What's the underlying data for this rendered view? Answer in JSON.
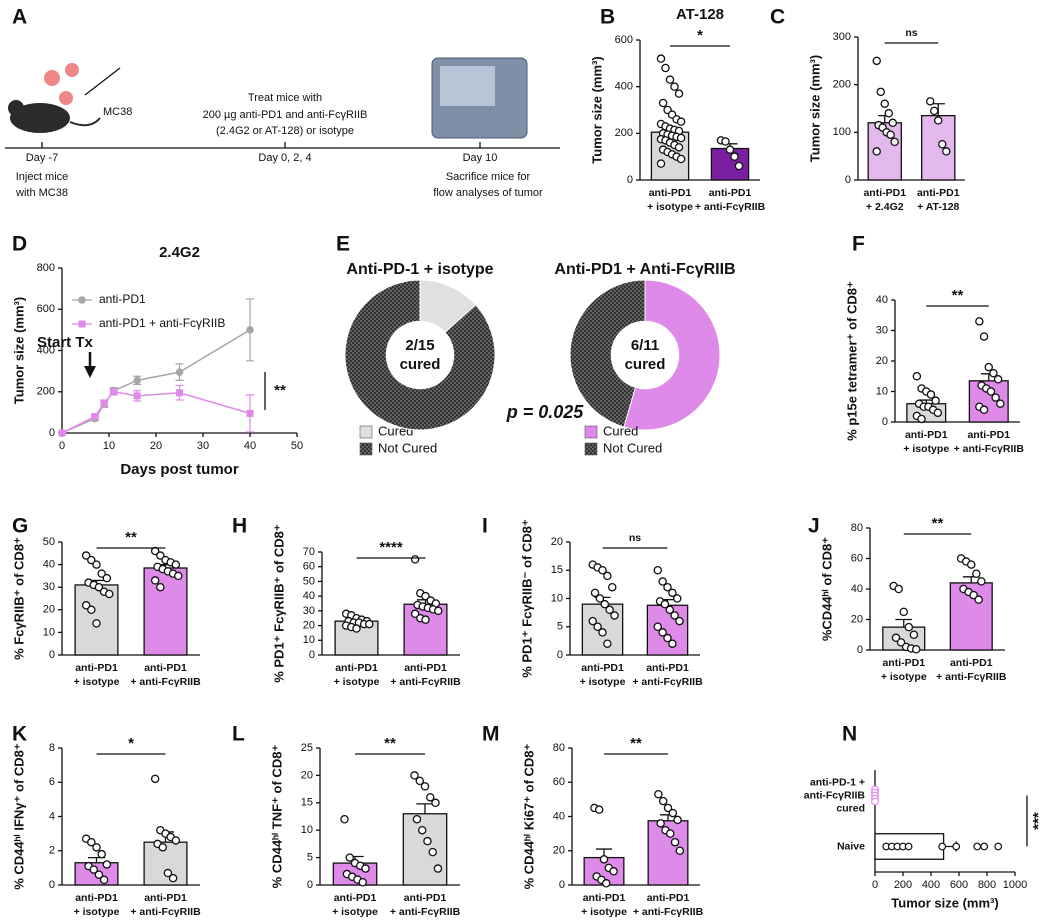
{
  "schematic": {
    "panel": "A",
    "cell_line": "MC38",
    "timeline": [
      {
        "day": "Day -7",
        "note": [
          "Inject mice",
          "with MC38"
        ]
      },
      {
        "day": "Day 0, 2, 4",
        "note": [
          "Treat mice with",
          "200 µg anti-PD1 and anti-FcγRIIB",
          "(2.4G2 or AT-128) or isotype"
        ]
      },
      {
        "day": "Day 10",
        "note": [
          "Sacrifice mice for",
          "flow analyses of tumor"
        ]
      }
    ]
  },
  "chart_data": [
    {
      "type": "bar",
      "panel": "B",
      "title": "AT-128",
      "ylabel": "Tumor size (mm³)",
      "categories": [
        [
          "anti-PD1",
          "+ isotype"
        ],
        [
          "anti-PD1",
          "+ anti-FcγRIIB"
        ]
      ],
      "values": [
        205,
        135
      ],
      "errors": [
        15,
        20
      ],
      "colors": [
        "#d9d9d9",
        "#7b1fa2"
      ],
      "points": [
        [
          520,
          480,
          430,
          400,
          370,
          330,
          300,
          280,
          260,
          250,
          240,
          230,
          220,
          215,
          210,
          200,
          195,
          190,
          185,
          180,
          175,
          170,
          160,
          150,
          140,
          130,
          120,
          110,
          100,
          90,
          70
        ],
        [
          170,
          165,
          130,
          100,
          60
        ]
      ],
      "ylim": [
        0,
        600
      ],
      "yticks": [
        0,
        200,
        400,
        600
      ],
      "significance": "*"
    },
    {
      "type": "bar",
      "panel": "C",
      "ylabel": "Tumor size (mm³)",
      "categories": [
        [
          "anti-PD1",
          "+ 2.4G2"
        ],
        [
          "anti-PD1",
          "+ AT-128"
        ]
      ],
      "values": [
        120,
        135
      ],
      "errors": [
        15,
        25
      ],
      "colors": [
        "#e3b8ec",
        "#e3b8ec"
      ],
      "points": [
        [
          250,
          185,
          160,
          140,
          120,
          115,
          110,
          100,
          95,
          80,
          60
        ],
        [
          165,
          145,
          125,
          75,
          60
        ]
      ],
      "ylim": [
        0,
        300
      ],
      "yticks": [
        0,
        100,
        200,
        300
      ],
      "significance": "ns"
    },
    {
      "type": "line",
      "panel": "D",
      "title": "2.4G2",
      "xlabel": "Days post tumor",
      "ylabel": "Tumor size (mm³)",
      "x": [
        0,
        7,
        9,
        11,
        16,
        25,
        40
      ],
      "series": [
        {
          "name": "anti-PD1",
          "color": "#a6a6a6",
          "marker": "circle",
          "values": [
            0,
            70,
            140,
            205,
            255,
            295,
            500
          ],
          "errors": [
            0,
            10,
            15,
            15,
            20,
            40,
            150
          ]
        },
        {
          "name": "anti-PD1 + anti-FcγRIIB",
          "color": "#dd8ae8",
          "marker": "square",
          "values": [
            0,
            80,
            145,
            200,
            180,
            195,
            95
          ],
          "errors": [
            0,
            10,
            15,
            15,
            25,
            35,
            90
          ]
        }
      ],
      "xlim": [
        0,
        50
      ],
      "xticks": [
        0,
        10,
        20,
        30,
        40,
        50
      ],
      "ylim": [
        0,
        800
      ],
      "yticks": [
        0,
        200,
        400,
        600,
        800
      ],
      "annotation": "Start Tx",
      "significance": "**"
    },
    {
      "type": "pie",
      "panel": "E",
      "title": "Anti-PD-1 + isotype",
      "categories": [
        "Cured",
        "Not Cured"
      ],
      "values": [
        2,
        13
      ],
      "colors": [
        "#e0e0e0",
        "#333333"
      ],
      "hatch": [
        false,
        true
      ],
      "center_label": [
        "2/15",
        "cured"
      ]
    },
    {
      "type": "pie",
      "title": "Anti-PD1  + Anti-FcγRIIB",
      "categories": [
        "Cured",
        "Not Cured"
      ],
      "values": [
        6,
        5
      ],
      "colors": [
        "#dd8ae8",
        "#333333"
      ],
      "hatch": [
        false,
        true
      ],
      "center_label": [
        "6/11",
        "cured"
      ],
      "annotation": "p = 0.025"
    },
    {
      "type": "bar",
      "panel": "F",
      "ylabel": "% p15e tetramer⁺ of CD8⁺",
      "categories": [
        [
          "anti-PD1",
          "+ isotype"
        ],
        [
          "anti-PD1",
          "+ anti-FcγRIIB"
        ]
      ],
      "values": [
        6,
        13.5
      ],
      "errors": [
        1.2,
        2.3
      ],
      "colors": [
        "#d9d9d9",
        "#dd8ae8"
      ],
      "points": [
        [
          15,
          11,
          10,
          9,
          7,
          6,
          5,
          5,
          4,
          3,
          2,
          1
        ],
        [
          33,
          28,
          18,
          16,
          14,
          12,
          11,
          10,
          8,
          6,
          5,
          4
        ]
      ],
      "ylim": [
        0,
        40
      ],
      "yticks": [
        0,
        10,
        20,
        30,
        40
      ],
      "significance": "**"
    },
    {
      "type": "bar",
      "panel": "G",
      "ylabel": "% FcγRIIB⁺ of CD8⁺",
      "categories": [
        [
          "anti-PD1",
          "+ isotype"
        ],
        [
          "anti-PD1",
          "+ anti-FcγRIIB"
        ]
      ],
      "values": [
        31,
        38.5
      ],
      "errors": [
        2,
        1.5
      ],
      "colors": [
        "#d9d9d9",
        "#dd8ae8"
      ],
      "points": [
        [
          44,
          42,
          40,
          36,
          34,
          32,
          31,
          30,
          28,
          27,
          22,
          20,
          14
        ],
        [
          46,
          44,
          42,
          41,
          40,
          39,
          38,
          37,
          36,
          35,
          33,
          30
        ]
      ],
      "ylim": [
        0,
        50
      ],
      "yticks": [
        0,
        10,
        20,
        30,
        40,
        50
      ],
      "significance": "**"
    },
    {
      "type": "bar",
      "panel": "H",
      "ylabel": "% PD1⁺ FcγRIIB⁺ of CD8⁺",
      "categories": [
        [
          "anti-PD1",
          "+ isotype"
        ],
        [
          "anti-PD1",
          "+ anti-FcγRIIB"
        ]
      ],
      "values": [
        23,
        34.5
      ],
      "errors": [
        1,
        3
      ],
      "colors": [
        "#d9d9d9",
        "#dd8ae8"
      ],
      "points": [
        [
          28,
          27,
          25,
          24,
          23,
          23,
          22,
          22,
          21,
          21,
          20,
          19,
          18
        ],
        [
          65,
          42,
          40,
          37,
          35,
          34,
          33,
          32,
          31,
          30,
          28,
          25,
          24
        ]
      ],
      "ylim": [
        0,
        70
      ],
      "yticks": [
        0,
        10,
        20,
        30,
        40,
        50,
        60,
        70
      ],
      "significance": "****"
    },
    {
      "type": "bar",
      "panel": "I",
      "ylabel": "% PD1⁺ FcγRIIB⁻ of CD8⁺",
      "categories": [
        [
          "anti-PD1",
          "+ isotype"
        ],
        [
          "anti-PD1",
          "+ anti-FcγRIIB"
        ]
      ],
      "values": [
        9,
        8.8
      ],
      "errors": [
        1.2,
        1
      ],
      "colors": [
        "#d9d9d9",
        "#dd8ae8"
      ],
      "points": [
        [
          16,
          15.5,
          15,
          14,
          12,
          11,
          10,
          9,
          8,
          7,
          6,
          5,
          4,
          2
        ],
        [
          15,
          13,
          12,
          11,
          10,
          9.5,
          9,
          8,
          7,
          6,
          5,
          4,
          3,
          2
        ]
      ],
      "ylim": [
        0,
        20
      ],
      "yticks": [
        0,
        5,
        10,
        15,
        20
      ],
      "significance": "ns"
    },
    {
      "type": "bar",
      "panel": "J",
      "ylabel": "%CD44ʰⁱ of CD8⁺",
      "categories": [
        [
          "anti-PD1",
          "+ isotype"
        ],
        [
          "anti-PD1",
          "+ anti-FcγRIIB"
        ]
      ],
      "values": [
        15,
        44
      ],
      "errors": [
        5,
        4
      ],
      "colors": [
        "#d9d9d9",
        "#dd8ae8"
      ],
      "points": [
        [
          42,
          40,
          25,
          15,
          10,
          8,
          5,
          2,
          1,
          0.5
        ],
        [
          60,
          58,
          56,
          50,
          45,
          40,
          38,
          36,
          33
        ]
      ],
      "ylim": [
        0,
        80
      ],
      "yticks": [
        0,
        20,
        40,
        60,
        80
      ],
      "significance": "**"
    },
    {
      "type": "bar",
      "panel": "K",
      "ylabel": "% CD44ʰⁱ IFNγ⁺ of CD8⁺",
      "categories": [
        [
          "anti-PD1",
          "+ isotype"
        ],
        [
          "anti-PD1",
          "+ anti-FcγRIIB"
        ]
      ],
      "values": [
        1.3,
        2.5
      ],
      "errors": [
        0.3,
        0.6
      ],
      "colors": [
        "#dd8ae8",
        "#d9d9d9"
      ],
      "points": [
        [
          2.7,
          2.5,
          2.2,
          1.8,
          1.2,
          1.1,
          0.9,
          0.6,
          0.3
        ],
        [
          6.2,
          3.2,
          3,
          2.8,
          2.6,
          2.4,
          2.2,
          0.7,
          0.4
        ]
      ],
      "ylim": [
        0,
        8
      ],
      "yticks": [
        0,
        2,
        4,
        6,
        8
      ],
      "significance": "*"
    },
    {
      "type": "bar",
      "panel": "L",
      "ylabel": "% CD44ʰⁱ TNF⁺ of CD8⁺",
      "categories": [
        [
          "anti-PD1",
          "+ isotype"
        ],
        [
          "anti-PD1",
          "+ anti-FcγRIIB"
        ]
      ],
      "values": [
        4,
        13
      ],
      "errors": [
        1.2,
        1.8
      ],
      "colors": [
        "#dd8ae8",
        "#d9d9d9"
      ],
      "points": [
        [
          12,
          5,
          4,
          3.5,
          3,
          2,
          1.5,
          1,
          0.5
        ],
        [
          20,
          19,
          18,
          16,
          15,
          12,
          10,
          8,
          6,
          3
        ]
      ],
      "ylim": [
        0,
        25
      ],
      "yticks": [
        0,
        5,
        10,
        15,
        20,
        25
      ],
      "significance": "**"
    },
    {
      "type": "bar",
      "panel": "M",
      "ylabel": "% CD44ʰⁱ Ki67⁺ of CD8⁺",
      "categories": [
        [
          "anti-PD1",
          "+ isotype"
        ],
        [
          "anti-PD1",
          "+ anti-FcγRIIB"
        ]
      ],
      "values": [
        16,
        37.5
      ],
      "errors": [
        5,
        3.5
      ],
      "colors": [
        "#dd8ae8",
        "#dd8ae8"
      ],
      "points": [
        [
          45,
          44,
          15,
          10,
          8,
          5,
          3,
          1
        ],
        [
          53,
          49,
          45,
          42,
          38,
          36,
          32,
          30,
          25,
          20
        ]
      ],
      "ylim": [
        0,
        80
      ],
      "yticks": [
        0,
        20,
        40,
        60,
        80
      ],
      "significance": "**"
    },
    {
      "type": "bar",
      "panel": "N",
      "orientation": "horizontal",
      "xlabel": "Tumor size (mm³)",
      "categories": [
        [
          "anti-PD-1 +",
          "anti-FcγRIIB",
          "cured"
        ],
        [
          "Naive"
        ]
      ],
      "values": [
        0,
        490
      ],
      "errors": [
        0,
        90
      ],
      "colors": [
        "#ffffff",
        "#ffffff"
      ],
      "point_colors": [
        "#dd8ae8",
        "#111111"
      ],
      "points": [
        [
          0,
          0,
          0,
          0,
          0
        ],
        [
          80,
          120,
          160,
          200,
          240,
          480,
          580,
          730,
          780,
          880
        ]
      ],
      "xlim": [
        0,
        1000
      ],
      "xticks": [
        0,
        200,
        400,
        600,
        800,
        1000
      ],
      "significance": "***"
    }
  ]
}
